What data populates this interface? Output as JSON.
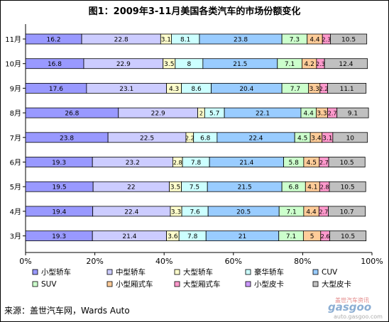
{
  "chart_data": {
    "type": "bar",
    "orientation": "horizontal",
    "stacked": "percent",
    "title": "图1：2009年3-11月美国各类汽车的市场份额变化",
    "categories": [
      "11月",
      "10月",
      "9月",
      "8月",
      "7月",
      "6月",
      "5月",
      "4月",
      "3月"
    ],
    "series": [
      {
        "name": "小型轿车",
        "color": "#9999ff",
        "values": [
          16.2,
          16.8,
          17.6,
          26.8,
          23.8,
          19.3,
          19.5,
          19.4,
          19.3
        ]
      },
      {
        "name": "中型轿车",
        "color": "#ccccff",
        "values": [
          22.8,
          22.9,
          23.1,
          22.9,
          22.5,
          23.2,
          22,
          22.4,
          21.4
        ]
      },
      {
        "name": "大型轿车",
        "color": "#ffffcc",
        "values": [
          3.1,
          3.5,
          4.3,
          2,
          2.2,
          2.8,
          3.5,
          3.3,
          3.6
        ]
      },
      {
        "name": "豪华轿车",
        "color": "#ccffff",
        "values": [
          8.1,
          8,
          8.6,
          5.7,
          6.8,
          7.8,
          7.5,
          7.6,
          7.8
        ]
      },
      {
        "name": "CUV",
        "color": "#99ccff",
        "values": [
          23.8,
          21.5,
          20.4,
          22.1,
          22.4,
          21.4,
          21.5,
          20.5,
          21
        ]
      },
      {
        "name": "SUV",
        "color": "#ccffcc",
        "values": [
          7.3,
          7.1,
          7.7,
          4.4,
          4.5,
          5.8,
          6.8,
          7.1,
          7.1
        ]
      },
      {
        "name": "小型厢式车",
        "color": "#ffcc99",
        "values": [
          4.4,
          4.2,
          3.3,
          3.3,
          3.4,
          4.5,
          4.1,
          4.4,
          5
        ]
      },
      {
        "name": "大型厢式车",
        "color": "#ff99cc",
        "values": [
          2.3,
          2.3,
          2.2,
          2.7,
          3.1,
          2.7,
          2.8,
          2.7,
          2.6
        ]
      },
      {
        "name": "小型皮卡",
        "color": "#cc99ff",
        "values": [
          0,
          0,
          0,
          0,
          0,
          0,
          0,
          0,
          0
        ]
      },
      {
        "name": "大型皮卡",
        "color": "#c0c0c0",
        "values": [
          10.5,
          12.4,
          11.1,
          9.1,
          10,
          10.5,
          10.5,
          10.7,
          10.5
        ]
      }
    ],
    "x_ticks": [
      "0%",
      "20%",
      "40%",
      "60%",
      "80%",
      "100%"
    ],
    "xlim": [
      0,
      100
    ],
    "legend": "bottom",
    "grid": false
  },
  "source": "来源：盖世汽车网，Wards Auto",
  "watermark": {
    "top_text": "盖世汽车资讯",
    "logo_text": "gasgoo",
    "url_text": "auto.gasgoo.com"
  }
}
